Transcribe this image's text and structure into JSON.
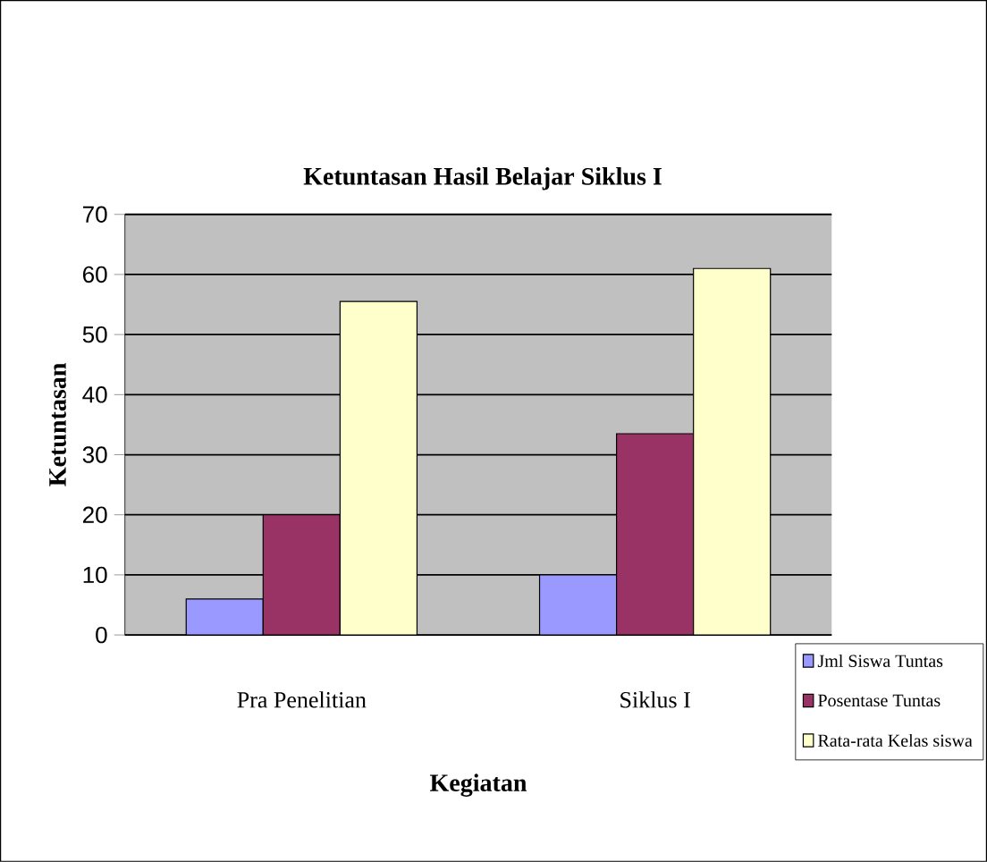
{
  "chart_data": {
    "type": "bar",
    "title": "Ketuntasan Hasil Belajar Siklus I",
    "xlabel": "Kegiatan",
    "ylabel": "Ketuntasan",
    "categories": [
      "Pra Penelitian",
      "Siklus I"
    ],
    "series": [
      {
        "name": "Jml Siswa Tuntas",
        "color": "#9999ff",
        "values": [
          6,
          10
        ]
      },
      {
        "name": "Posentase Tuntas",
        "color": "#993366",
        "values": [
          20,
          33.5
        ]
      },
      {
        "name": "Rata-rata Kelas  siswa",
        "color": "#ffffcc",
        "values": [
          55.5,
          61
        ]
      }
    ],
    "ylim": [
      0,
      70
    ],
    "yticks": [
      0,
      10,
      20,
      30,
      40,
      50,
      60,
      70
    ],
    "grid": "y",
    "legend": "bottom right"
  }
}
